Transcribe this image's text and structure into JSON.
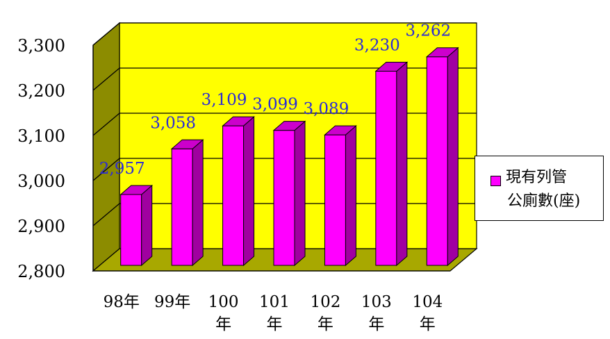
{
  "chart_data": {
    "type": "bar",
    "three_d": true,
    "categories": [
      [
        "98年"
      ],
      [
        "99年"
      ],
      [
        "100",
        "年"
      ],
      [
        "101",
        "年"
      ],
      [
        "102",
        "年"
      ],
      [
        "103",
        "年"
      ],
      [
        "104",
        "年"
      ]
    ],
    "series": [
      {
        "name": "現有列管公廁數(座)",
        "values": [
          2957,
          3058,
          3109,
          3099,
          3089,
          3230,
          3262
        ]
      }
    ],
    "data_labels": [
      "2,957",
      "3,058",
      "3,109",
      "3,099",
      "3,089",
      "3,230",
      "3,262"
    ],
    "y_ticks": [
      "2,800",
      "2,900",
      "3,000",
      "3,100",
      "3,200",
      "3,300"
    ],
    "ylim": [
      2800,
      3300
    ],
    "grid": true,
    "legend_position": "right",
    "legend_lines": [
      "現有列管",
      "公廁數(座)"
    ],
    "colors": {
      "bar_front": "#ff00ff",
      "bar_side": "#a000a0",
      "bar_top": "#cc00cc",
      "back_wall": "#ffff00",
      "side_wall": "#8c8c00",
      "floor": "#a8a800",
      "data_label": "#2b2bd6"
    }
  }
}
